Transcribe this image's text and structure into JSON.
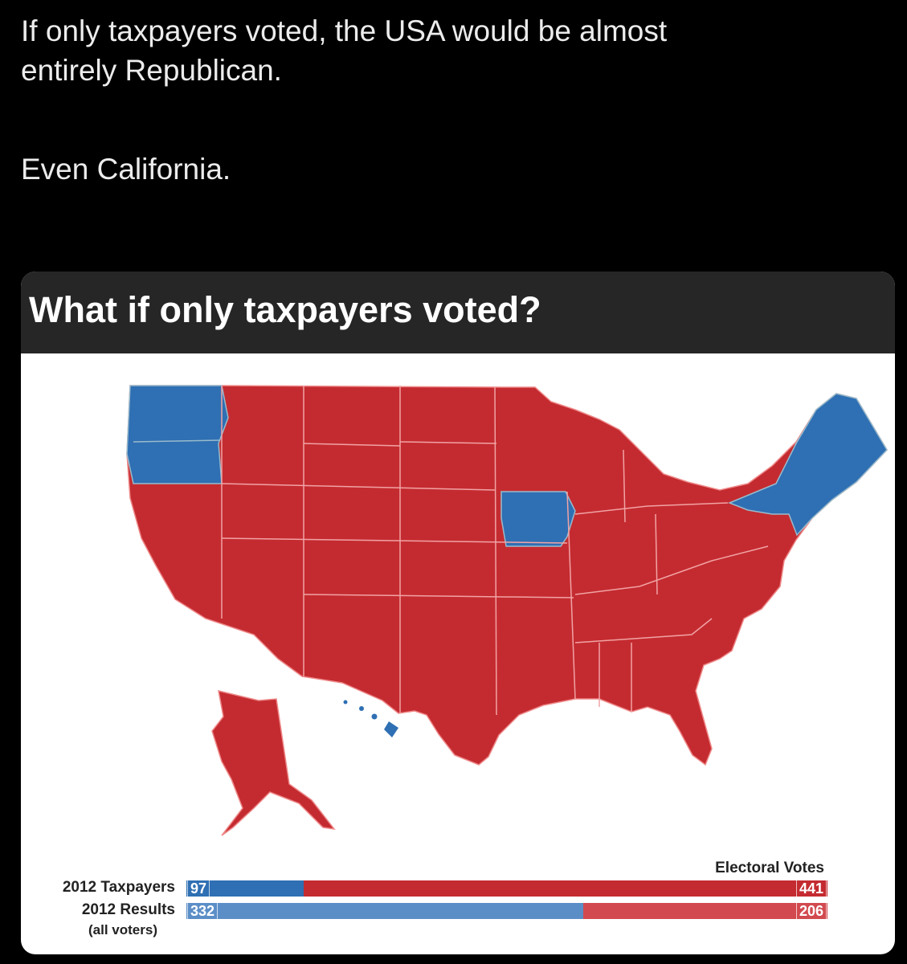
{
  "post": {
    "line1": "If only taxpayers voted, the USA would be almost",
    "line2": "entirely Republican.",
    "line3": "Even California."
  },
  "card": {
    "title": "What if only taxpayers voted?"
  },
  "legend": {
    "title": "Electoral Votes",
    "rows": [
      {
        "label": "2012 Taxpayers",
        "blue_votes": "97",
        "red_votes": "441"
      },
      {
        "label": "2012 Results",
        "sublabel": "(all voters)",
        "blue_votes": "332",
        "red_votes": "206"
      }
    ]
  },
  "colors": {
    "republican": "#c42b30",
    "democrat": "#2f6fb3",
    "democrat_light": "#5b8ec7",
    "republican_light": "#d24a4f"
  }
}
